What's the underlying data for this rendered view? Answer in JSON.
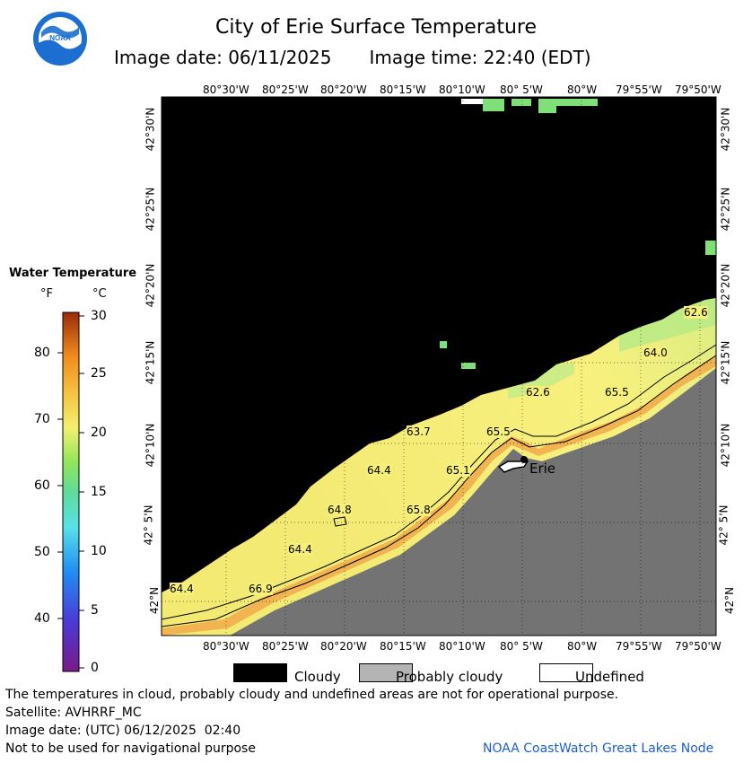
{
  "header": {
    "title": "City of Erie Surface Temperature",
    "date_label": "Image date: 06/11/2025",
    "time_label": "Image time: 22:40 (EDT)",
    "logo_text": "NOAA"
  },
  "map": {
    "lon_labels": [
      "80°30'W",
      "80°25'W",
      "80°20'W",
      "80°15'W",
      "80°10'W",
      "80° 5'W",
      "80°W",
      "79°55'W",
      "79°50'W"
    ],
    "lat_labels": [
      "42°30'N",
      "42°25'N",
      "42°20'N",
      "42°15'N",
      "42°10'N",
      "42° 5'N",
      "42°N"
    ],
    "city_label": "Erie",
    "temp_labels": [
      "62.6",
      "64.0",
      "62.6",
      "65.5",
      "63.7",
      "65.5",
      "64.4",
      "65.1",
      "64.8",
      "65.8",
      "64.4",
      "64.4",
      "66.9"
    ],
    "colors": {
      "cloudy": "#000000",
      "land": "#737373",
      "water_warm": "#f6f07a",
      "water_cool": "#a8e87e"
    }
  },
  "legend": {
    "title": "Water Temperature",
    "unit_f": "°F",
    "unit_c": "°C",
    "f_ticks": [
      "80",
      "70",
      "60",
      "50",
      "40"
    ],
    "c_ticks": [
      "30",
      "25",
      "20",
      "15",
      "10",
      "5",
      "0"
    ]
  },
  "key": {
    "cloudy": "Cloudy",
    "probably_cloudy": "Probably cloudy",
    "undefined": "Undefined"
  },
  "footer": {
    "disclaimer": "The temperatures in cloud, probably cloudy and undefined areas are not for operational purpose.",
    "satellite": "Satellite: AVHRRF_MC",
    "utc_date": "Image date: (UTC) 06/12/2025  02:40",
    "nav": "Not to be used for navigational purpose",
    "attribution": "NOAA CoastWatch Great Lakes Node"
  }
}
